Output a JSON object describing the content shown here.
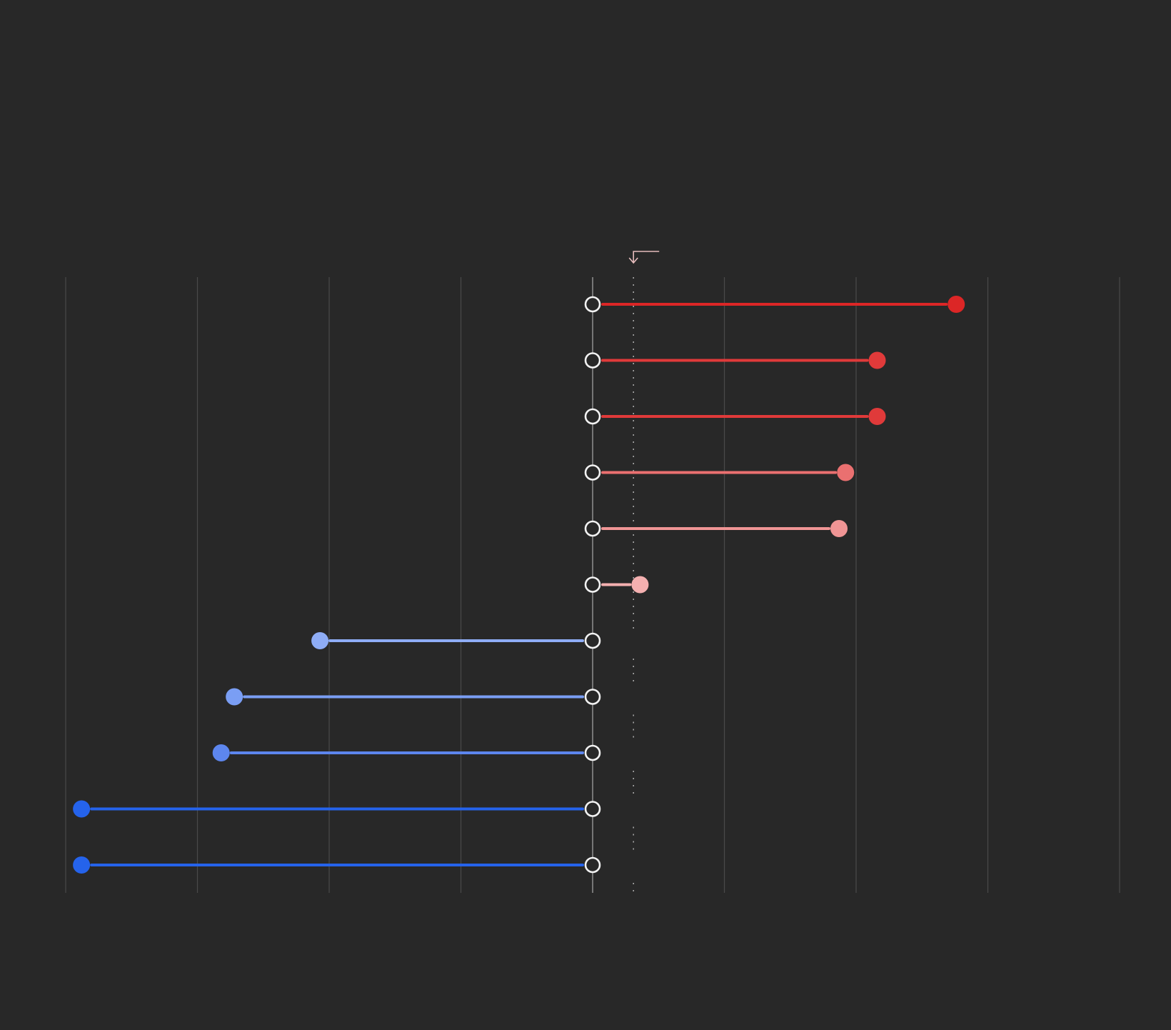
{
  "chart_data": {
    "type": "lollipop",
    "title": "",
    "xlabel": "",
    "ylabel": "",
    "baseline": 0,
    "reference_line": 0.31,
    "xlim": [
      -4,
      4
    ],
    "grid": true,
    "items": [
      {
        "value": 2.76,
        "color": "#dc2626"
      },
      {
        "value": 2.16,
        "color": "#e03a3a"
      },
      {
        "value": 2.16,
        "color": "#e03a3a"
      },
      {
        "value": 1.92,
        "color": "#ea7070"
      },
      {
        "value": 1.87,
        "color": "#f09595"
      },
      {
        "value": 0.36,
        "color": "#f4b0b0"
      },
      {
        "value": -2.07,
        "color": "#8fadf6"
      },
      {
        "value": -2.72,
        "color": "#7a9ef4"
      },
      {
        "value": -2.82,
        "color": "#5d86ee"
      },
      {
        "value": -3.88,
        "color": "#2563eb"
      },
      {
        "value": -3.88,
        "color": "#2563eb"
      }
    ]
  }
}
